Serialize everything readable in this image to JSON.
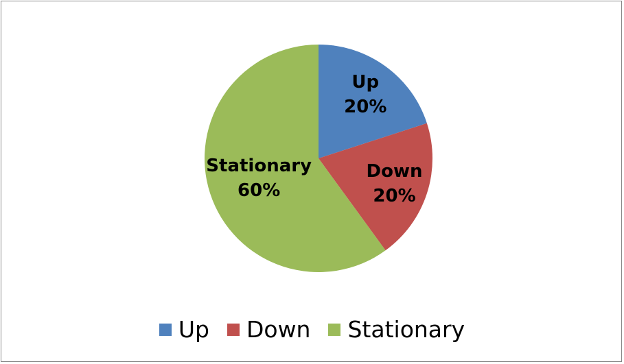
{
  "chart_data": {
    "type": "pie",
    "categories": [
      "Up",
      "Down",
      "Stationary"
    ],
    "values": [
      20,
      20,
      60
    ],
    "value_labels": [
      "20%",
      "20%",
      "60%"
    ],
    "colors": [
      "#4f81bd",
      "#c0504d",
      "#9bbb59"
    ],
    "start_angle_deg": 0,
    "direction": "clockwise",
    "legend_position": "bottom",
    "title": ""
  },
  "legend": {
    "items": [
      {
        "label": "Up",
        "color": "#4f81bd"
      },
      {
        "label": "Down",
        "color": "#c0504d"
      },
      {
        "label": "Stationary",
        "color": "#9bbb59"
      }
    ]
  }
}
